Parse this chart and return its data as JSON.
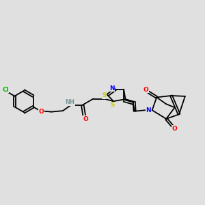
{
  "bg_color": "#e0e0e0",
  "bond_color": "#000000",
  "bond_width": 1.3,
  "atom_colors": {
    "N": "#0000ff",
    "O": "#ff0000",
    "S": "#cccc00",
    "Cl": "#00bb00",
    "C": "#000000",
    "H": "#7a9a9a"
  },
  "font_size_atom": 6.5
}
